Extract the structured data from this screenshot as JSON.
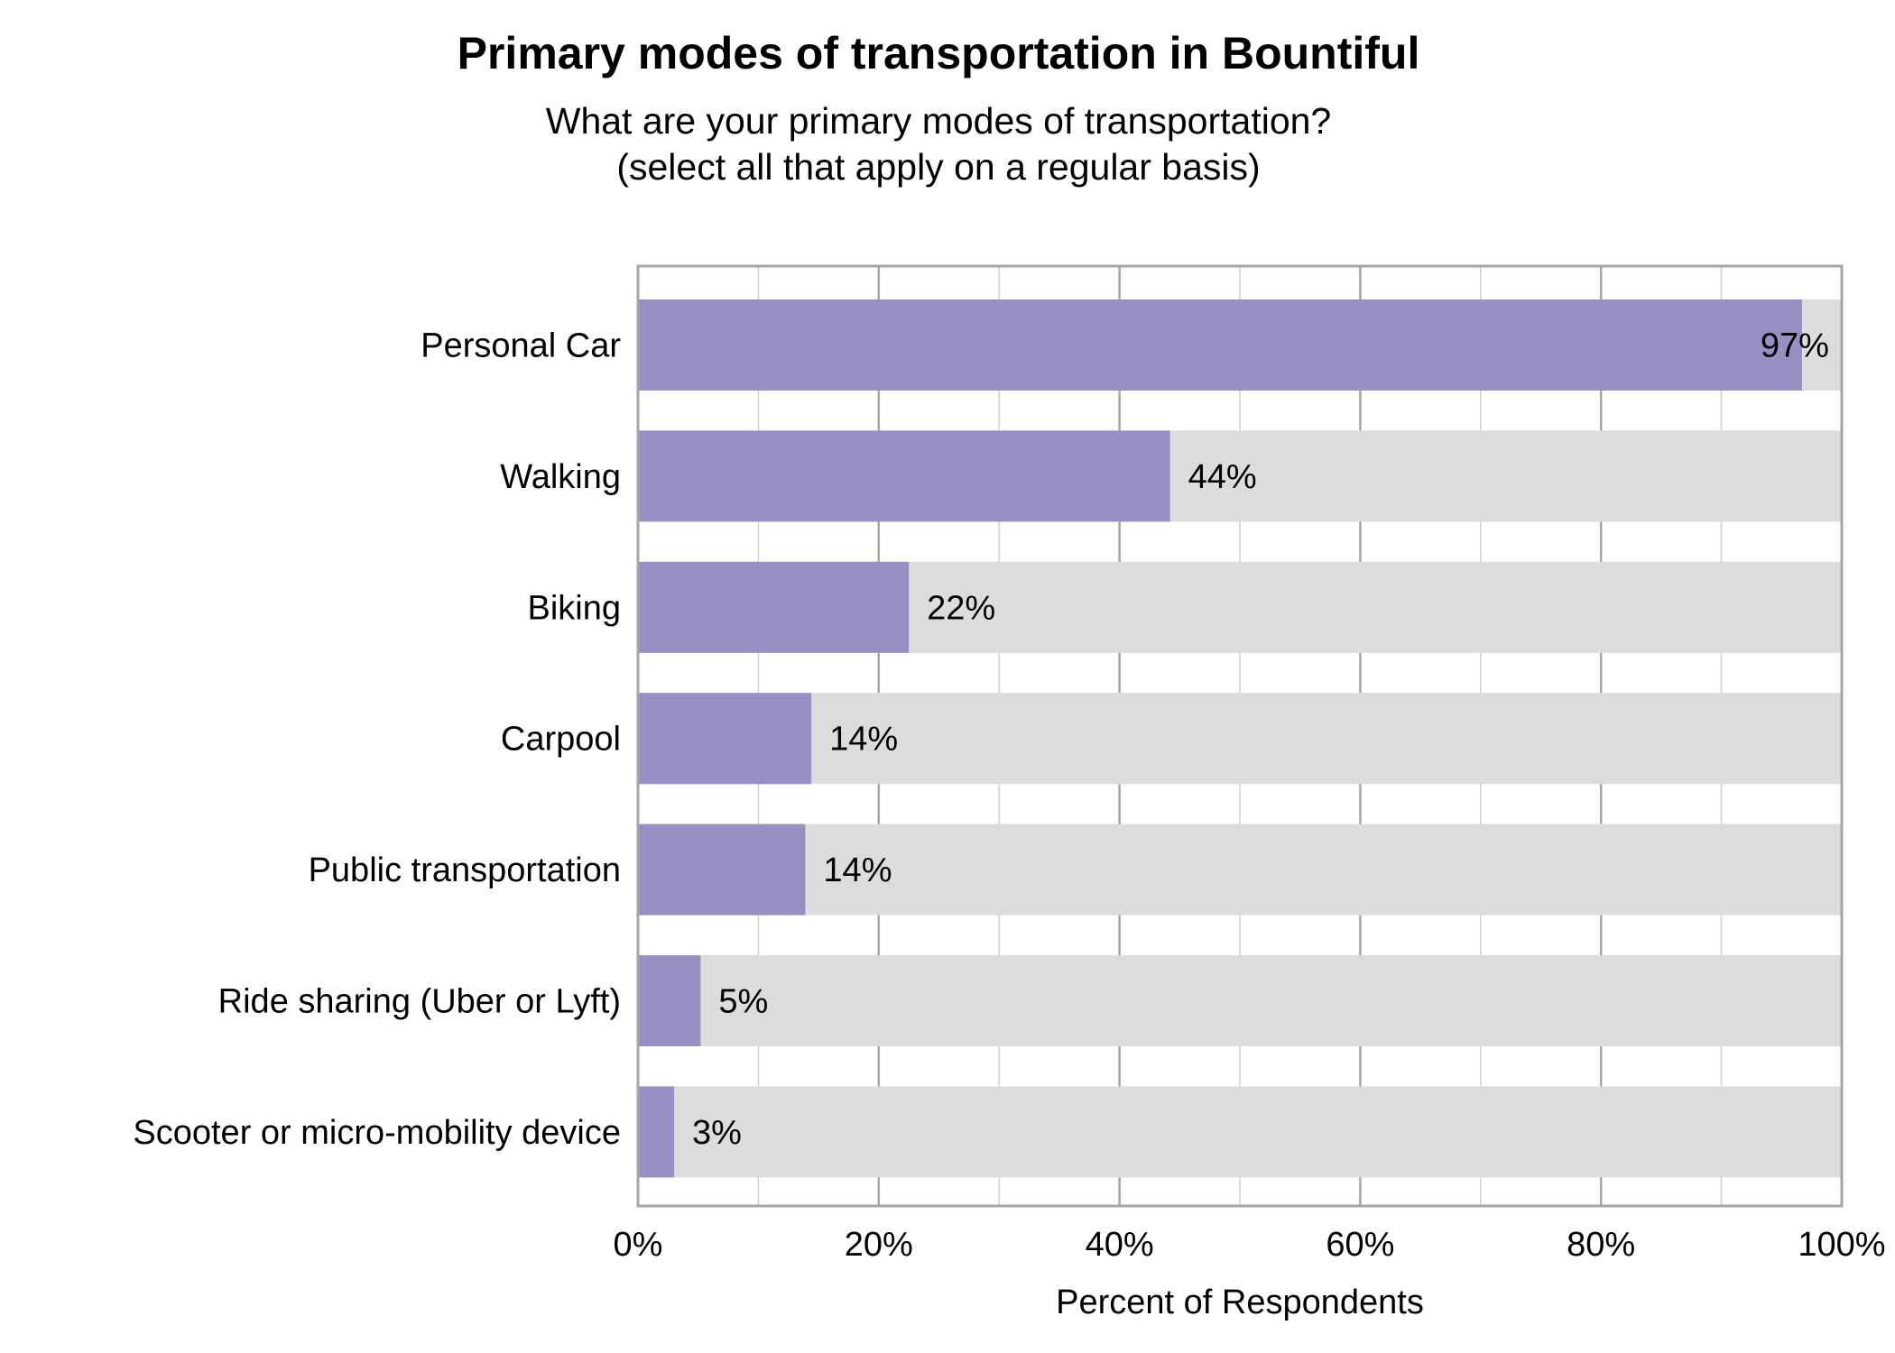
{
  "chart_data": {
    "type": "bar",
    "orientation": "horizontal",
    "title": "Primary modes of transportation in Bountiful",
    "subtitle": [
      "What are your primary modes of transportation?",
      "(select all that apply on a regular basis)"
    ],
    "xlabel": "Percent of Respondents",
    "ylabel": "",
    "xlim": [
      0,
      100
    ],
    "x_ticks": [
      "0%",
      "20%",
      "40%",
      "60%",
      "80%",
      "100%"
    ],
    "grid": true,
    "categories": [
      "Personal Car",
      "Walking",
      "Biking",
      "Carpool",
      "Public transportation",
      "Ride sharing (Uber or Lyft)",
      "Scooter or micro-mobility device"
    ],
    "values": [
      96.7,
      44.2,
      22.5,
      14.4,
      13.9,
      5.2,
      3.0
    ],
    "data_labels": [
      "97%",
      "44%",
      "22%",
      "14%",
      "14%",
      "5%",
      "3%"
    ],
    "colors": {
      "bar": "#988fc3",
      "background_bar": "#dcdcdc",
      "grid": "#bbbbbb",
      "axis": "#a6a6a6"
    }
  }
}
